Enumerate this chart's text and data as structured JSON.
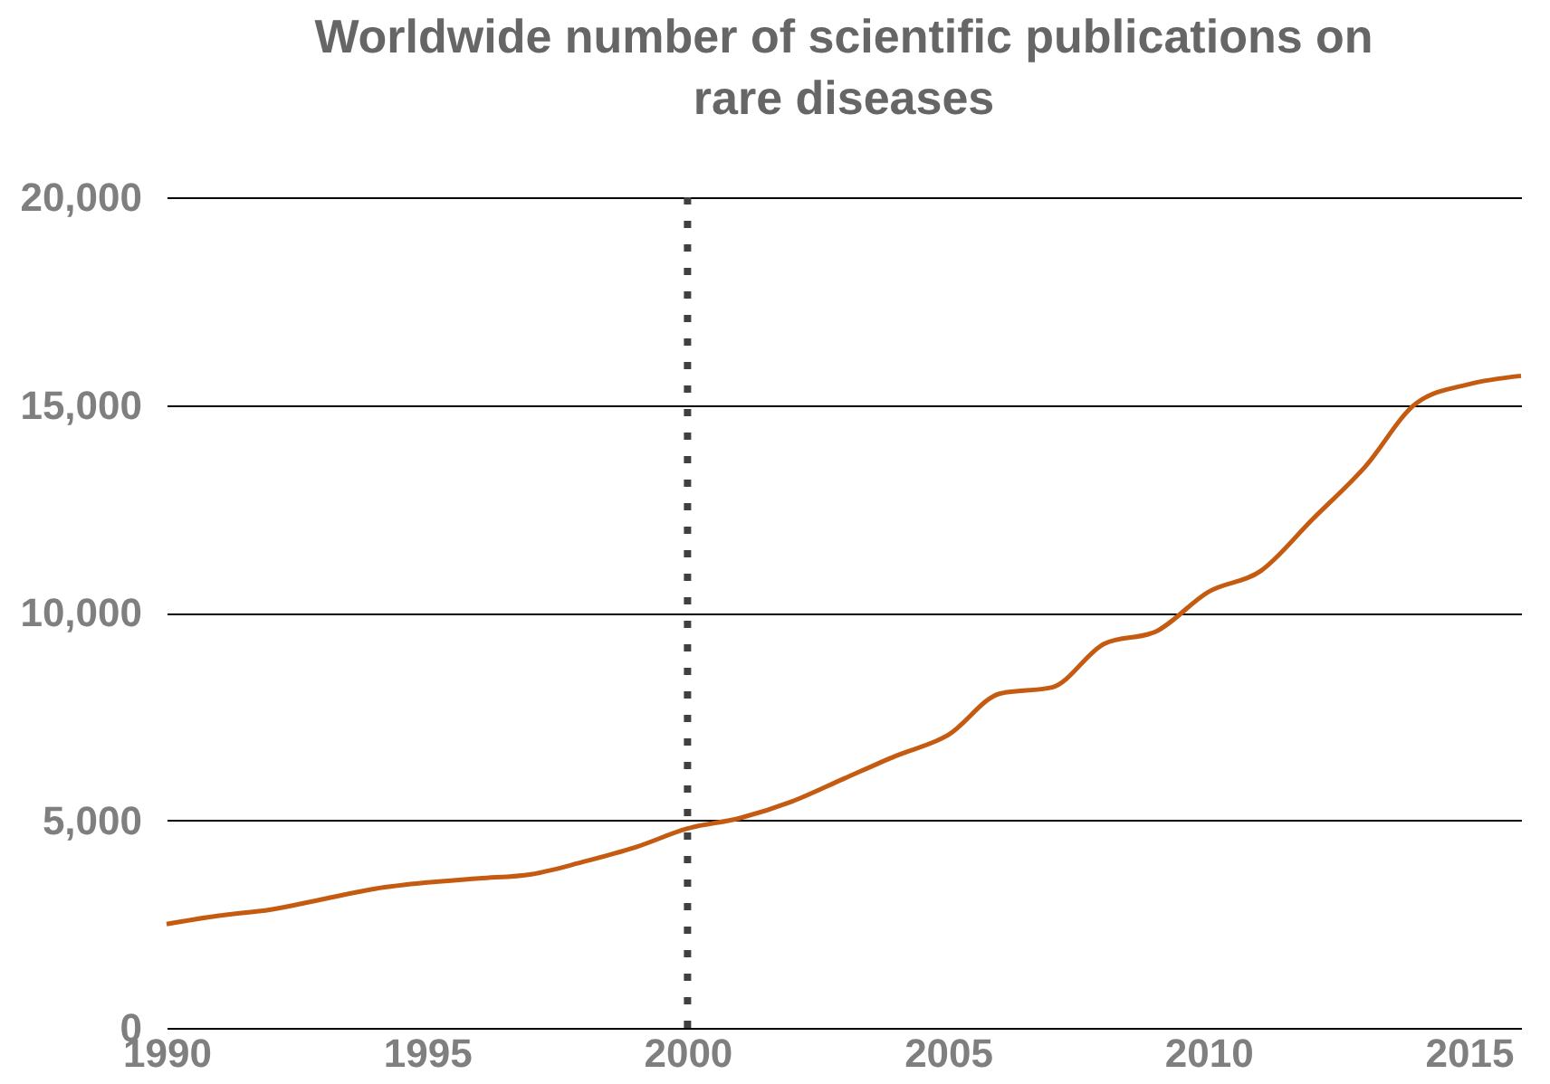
{
  "chart_data": {
    "type": "line",
    "title": "Worldwide number of scientific publications on rare diseases",
    "x": [
      1990,
      1991,
      1992,
      1993,
      1994,
      1995,
      1996,
      1997,
      1998,
      1999,
      2000,
      2001,
      2002,
      2003,
      2004,
      2005,
      2006,
      2007,
      2008,
      2009,
      2010,
      2011,
      2012,
      2013,
      2014,
      2015,
      2016
    ],
    "series": [
      {
        "color": "#c55a11",
        "values": [
          2500,
          2700,
          2850,
          3100,
          3350,
          3500,
          3600,
          3700,
          4000,
          4350,
          4800,
          5050,
          5450,
          6000,
          6550,
          7050,
          8050,
          8200,
          9250,
          9550,
          10500,
          11000,
          12250,
          13500,
          15050,
          15500,
          15700
        ]
      }
    ],
    "xlim": [
      1990,
      2016
    ],
    "xticks": [
      1990,
      1995,
      2000,
      2005,
      2010,
      2015
    ],
    "ylim": [
      0,
      20000
    ],
    "yticks": [
      0,
      {
        "value": 5000,
        "label": "5,000"
      },
      {
        "value": 10000,
        "label": "10,000"
      },
      {
        "value": 15000,
        "label": "15,000"
      },
      {
        "value": 20000,
        "label": "20,000"
      }
    ],
    "grid": "y",
    "marker": "none",
    "line_style": "solid",
    "ref_lines": [
      {
        "axis": "x",
        "value": 2000,
        "color": "#404040",
        "line_style": "dotted"
      }
    ]
  }
}
